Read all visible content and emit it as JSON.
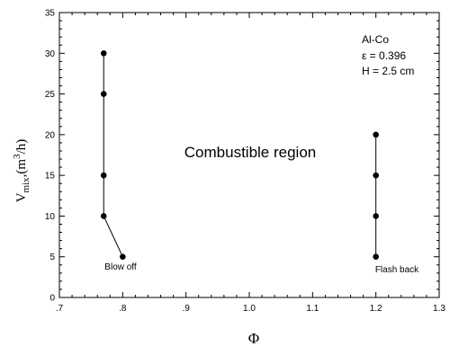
{
  "chart_data": {
    "type": "scatter",
    "xlabel": "Φ",
    "ylabel_main": "V",
    "ylabel_sub": "mix",
    "ylabel_units": ",(m",
    "ylabel_sup": "3",
    "ylabel_tail": "/h)",
    "xlim": [
      0.7,
      1.3
    ],
    "ylim": [
      0,
      35
    ],
    "x_ticks": [
      0.7,
      0.8,
      0.9,
      1.0,
      1.1,
      1.2,
      1.3
    ],
    "x_tick_labels": [
      ".7",
      ".8",
      ".9",
      "1.0",
      "1.1",
      "1.2",
      "1.3"
    ],
    "y_ticks": [
      0,
      5,
      10,
      15,
      20,
      25,
      30,
      35
    ],
    "y_tick_labels": [
      "0",
      "5",
      "10",
      "15",
      "20",
      "25",
      "30",
      "35"
    ],
    "grid": false,
    "series": [
      {
        "points": [
          {
            "x": 0.77,
            "y": 30
          },
          {
            "x": 0.77,
            "y": 25
          },
          {
            "x": 0.77,
            "y": 15
          },
          {
            "x": 0.77,
            "y": 10
          },
          {
            "x": 0.8,
            "y": 5
          }
        ],
        "color": "#000000"
      },
      {
        "points": [
          {
            "x": 1.2,
            "y": 20
          },
          {
            "x": 1.2,
            "y": 15
          },
          {
            "x": 1.2,
            "y": 10
          },
          {
            "x": 1.2,
            "y": 5
          }
        ],
        "color": "#000000"
      }
    ],
    "annotations": {
      "region": "Combustible region",
      "blow_off": "Blow off",
      "flash_back": "Flash back",
      "info_line1": "Al-Co",
      "info_line2": "ε = 0.396",
      "info_line3": "H = 2.5 cm"
    }
  }
}
